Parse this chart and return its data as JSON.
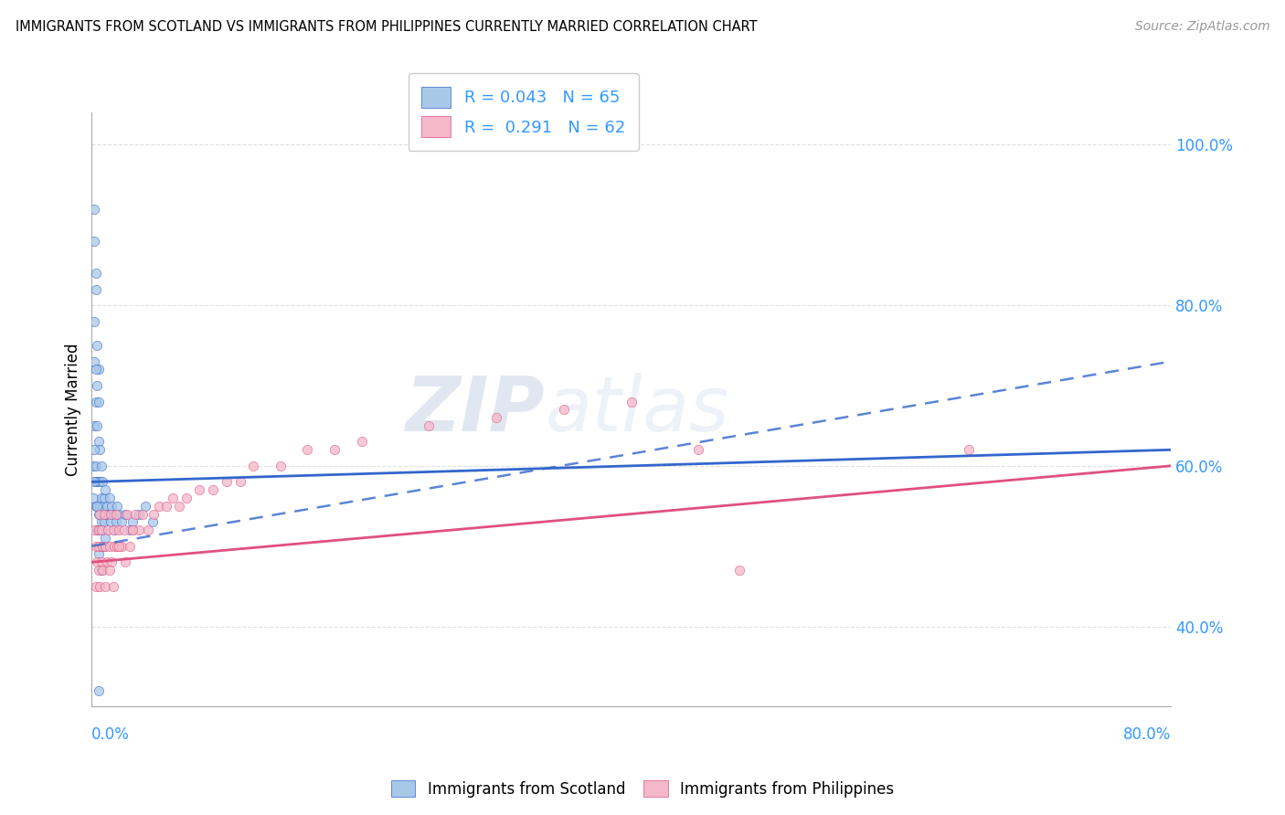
{
  "title": "IMMIGRANTS FROM SCOTLAND VS IMMIGRANTS FROM PHILIPPINES CURRENTLY MARRIED CORRELATION CHART",
  "source": "Source: ZipAtlas.com",
  "ylabel": "Currently Married",
  "scotland_R": 0.043,
  "scotland_N": 65,
  "philippines_R": 0.291,
  "philippines_N": 62,
  "scotland_color": "#a8c8e8",
  "philippines_color": "#f4b8c8",
  "scotland_line_color": "#3366cc",
  "philippines_line_color": "#e05080",
  "xlim": [
    0.0,
    0.8
  ],
  "ylim": [
    0.3,
    1.04
  ],
  "yticks": [
    0.4,
    0.6,
    0.8,
    1.0
  ],
  "ytick_labels": [
    "40.0%",
    "60.0%",
    "80.0%",
    "100.0%"
  ],
  "background_color": "#ffffff",
  "grid_color": "#e0e0e0",
  "scotland_x": [
    0.001,
    0.001,
    0.002,
    0.002,
    0.002,
    0.002,
    0.002,
    0.003,
    0.003,
    0.003,
    0.003,
    0.003,
    0.003,
    0.004,
    0.004,
    0.004,
    0.004,
    0.004,
    0.005,
    0.005,
    0.005,
    0.005,
    0.005,
    0.005,
    0.005,
    0.006,
    0.006,
    0.006,
    0.006,
    0.007,
    0.007,
    0.007,
    0.007,
    0.007,
    0.008,
    0.008,
    0.008,
    0.009,
    0.009,
    0.009,
    0.01,
    0.01,
    0.01,
    0.011,
    0.012,
    0.013,
    0.014,
    0.015,
    0.016,
    0.017,
    0.018,
    0.019,
    0.02,
    0.022,
    0.025,
    0.028,
    0.03,
    0.035,
    0.04,
    0.045,
    0.002,
    0.002,
    0.003,
    0.004,
    0.005
  ],
  "scotland_y": [
    0.56,
    0.6,
    0.88,
    0.92,
    0.78,
    0.73,
    0.65,
    0.84,
    0.82,
    0.68,
    0.6,
    0.58,
    0.55,
    0.75,
    0.7,
    0.65,
    0.58,
    0.52,
    0.72,
    0.68,
    0.63,
    0.58,
    0.54,
    0.52,
    0.49,
    0.62,
    0.58,
    0.55,
    0.52,
    0.6,
    0.56,
    0.53,
    0.5,
    0.47,
    0.58,
    0.55,
    0.52,
    0.56,
    0.53,
    0.5,
    0.57,
    0.54,
    0.51,
    0.55,
    0.54,
    0.56,
    0.53,
    0.55,
    0.54,
    0.52,
    0.53,
    0.55,
    0.54,
    0.53,
    0.54,
    0.52,
    0.53,
    0.54,
    0.55,
    0.53,
    0.58,
    0.62,
    0.72,
    0.55,
    0.32
  ],
  "philippines_x": [
    0.002,
    0.003,
    0.004,
    0.005,
    0.005,
    0.006,
    0.007,
    0.007,
    0.008,
    0.009,
    0.01,
    0.011,
    0.012,
    0.013,
    0.014,
    0.015,
    0.016,
    0.017,
    0.018,
    0.019,
    0.02,
    0.022,
    0.024,
    0.026,
    0.028,
    0.03,
    0.032,
    0.035,
    0.038,
    0.042,
    0.046,
    0.05,
    0.055,
    0.06,
    0.065,
    0.07,
    0.08,
    0.09,
    0.1,
    0.11,
    0.12,
    0.14,
    0.16,
    0.18,
    0.2,
    0.25,
    0.3,
    0.35,
    0.4,
    0.45,
    0.003,
    0.005,
    0.006,
    0.008,
    0.01,
    0.013,
    0.016,
    0.02,
    0.025,
    0.03,
    0.65,
    0.48
  ],
  "philippines_y": [
    0.52,
    0.5,
    0.48,
    0.52,
    0.5,
    0.54,
    0.48,
    0.52,
    0.5,
    0.54,
    0.5,
    0.48,
    0.52,
    0.5,
    0.54,
    0.48,
    0.52,
    0.5,
    0.54,
    0.5,
    0.52,
    0.5,
    0.52,
    0.54,
    0.5,
    0.52,
    0.54,
    0.52,
    0.54,
    0.52,
    0.54,
    0.55,
    0.55,
    0.56,
    0.55,
    0.56,
    0.57,
    0.57,
    0.58,
    0.58,
    0.6,
    0.6,
    0.62,
    0.62,
    0.63,
    0.65,
    0.66,
    0.67,
    0.68,
    0.62,
    0.45,
    0.47,
    0.45,
    0.47,
    0.45,
    0.47,
    0.45,
    0.5,
    0.48,
    0.52,
    0.62,
    0.47
  ],
  "watermark_zip": "ZIP",
  "watermark_atlas": "atlas"
}
